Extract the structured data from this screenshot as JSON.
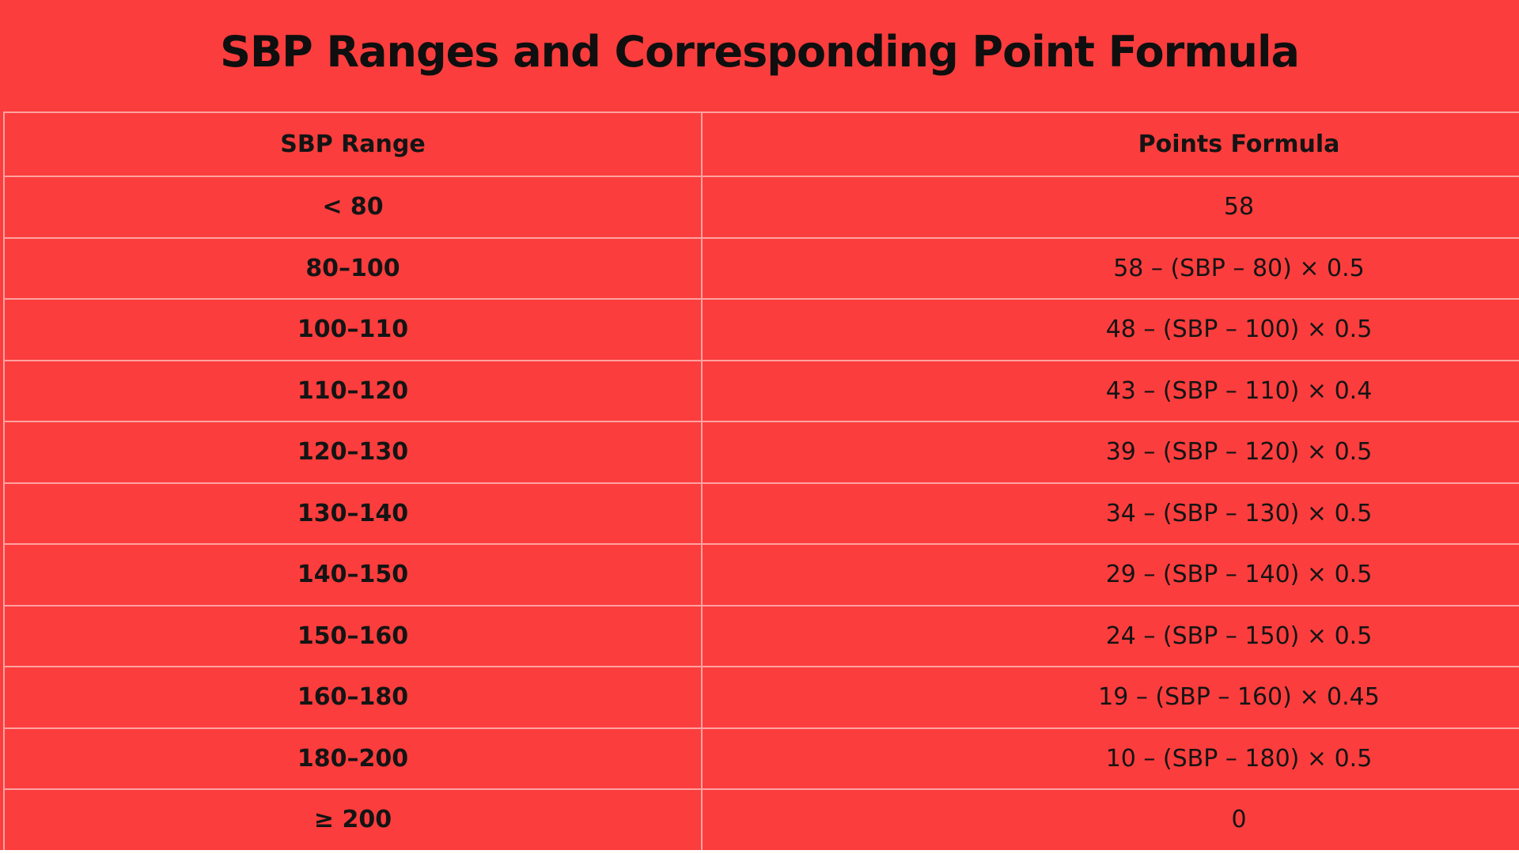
{
  "title": "SBP Ranges and Corresponding Point Formula",
  "chart_data": {
    "type": "table",
    "title": "SBP Ranges and Corresponding Point Formula",
    "columns": [
      "SBP Range",
      "Points Formula"
    ],
    "rows": [
      [
        "< 80",
        "58"
      ],
      [
        "80–100",
        "58 – (SBP – 80) × 0.5"
      ],
      [
        "100–110",
        "48 – (SBP – 100) × 0.5"
      ],
      [
        "110–120",
        "43 – (SBP – 110) × 0.4"
      ],
      [
        "120–130",
        "39 – (SBP – 120) × 0.5"
      ],
      [
        "130–140",
        "34 – (SBP – 130) × 0.5"
      ],
      [
        "140–150",
        "29 – (SBP – 140) × 0.5"
      ],
      [
        "150–160",
        "24 – (SBP – 150) × 0.5"
      ],
      [
        "160–180",
        "19 – (SBP – 160) × 0.45"
      ],
      [
        "180–200",
        "10 – (SBP – 180) × 0.5"
      ],
      [
        "≥ 200",
        "0"
      ]
    ],
    "layout_hints": {
      "grid": "on",
      "second_column_clipped_by_frame": true
    }
  },
  "colors": {
    "background": "#FC3D3D",
    "grid_line": "rgba(255,255,255,0.52)",
    "text": "#141414",
    "bottom_band": "#FFFFFF"
  }
}
